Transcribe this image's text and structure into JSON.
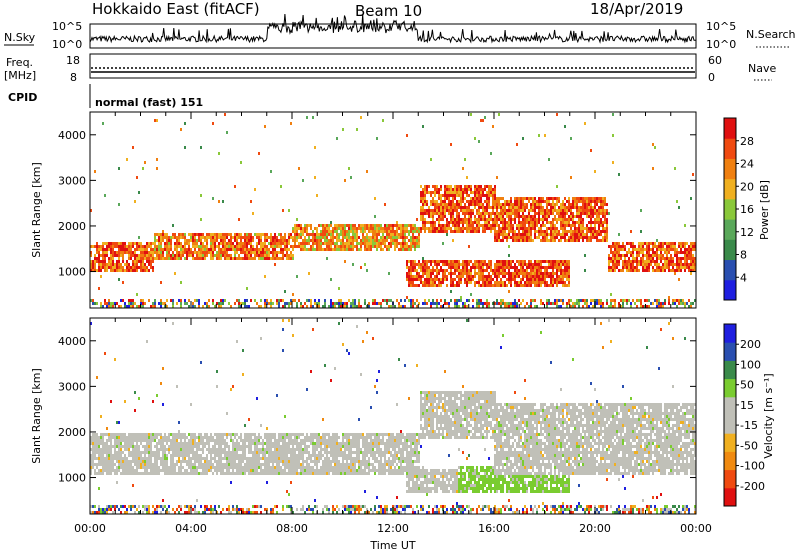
{
  "header": {
    "radar": "Hokkaido East (fitACF)",
    "beam": "Beam 10",
    "date": "18/Apr/2019"
  },
  "panels": {
    "nsky_label": "N.Sky",
    "nsky_tick_top": "10^5",
    "nsky_tick_bottom": "10^0",
    "nsearch_label": "N.Search",
    "freq_label_1": "Freq.",
    "freq_label_2": "[MHz]",
    "freq_tick_top": "18",
    "freq_tick_bottom": "8",
    "nave_label": "Nave",
    "nave_tick_top": "60",
    "nave_tick_bottom": "0",
    "cpid_label": "CPID",
    "cpid_value": "normal (fast) 151"
  },
  "colors": {
    "power": [
      "#1f1fe0",
      "#2a4fb0",
      "#3a8a4a",
      "#5aa85a",
      "#8ac83a",
      "#f0b020",
      "#f08010",
      "#f04a10",
      "#e01010"
    ],
    "velocity": [
      "#e01010",
      "#f04a10",
      "#f08a10",
      "#f0b020",
      "#c0c0b8",
      "#c0c0b8",
      "#7acc30",
      "#3a8a4a",
      "#2a4fb0",
      "#1f1fe0"
    ]
  },
  "chart_data": [
    {
      "type": "heatmap",
      "name": "power",
      "xlabel": "",
      "ylabel": "Slant Range [km]",
      "xlim": [
        "00:00",
        "24:00"
      ],
      "ylim": [
        200,
        4500
      ],
      "yticks": [
        "1000",
        "2000",
        "3000",
        "4000"
      ],
      "colorbar_label": "Power [dB]",
      "colorbar_ticks": [
        "4",
        "8",
        "12",
        "16",
        "20",
        "24",
        "28"
      ],
      "colorbar_range": [
        0,
        32
      ],
      "echo_bands": [
        {
          "from_hours": 0,
          "to_hours": 2.5,
          "range_km": [
            1050,
            1700
          ],
          "level_db": 26
        },
        {
          "from_hours": 2.5,
          "to_hours": 8,
          "range_km": [
            1300,
            1900
          ],
          "level_db": 24
        },
        {
          "from_hours": 8,
          "to_hours": 13,
          "range_km": [
            1500,
            2100
          ],
          "level_db": 22
        },
        {
          "from_hours": 13,
          "to_hours": 16,
          "range_km": [
            1900,
            2900
          ],
          "level_db": 26
        },
        {
          "from_hours": 16,
          "to_hours": 20.5,
          "range_km": [
            1700,
            2700
          ],
          "level_db": 26
        },
        {
          "from_hours": 20.5,
          "to_hours": 24,
          "range_km": [
            1000,
            1700
          ],
          "level_db": 26
        },
        {
          "from_hours": 12.5,
          "to_hours": 19,
          "range_km": [
            700,
            1300
          ],
          "level_db": 27
        }
      ]
    },
    {
      "type": "heatmap",
      "name": "velocity",
      "xlabel": "Time UT",
      "ylabel": "Slant Range [km]",
      "xlim": [
        "00:00",
        "24:00"
      ],
      "xticks": [
        "00:00",
        "04:00",
        "08:00",
        "12:00",
        "16:00",
        "20:00",
        "00:00"
      ],
      "ylim": [
        200,
        4500
      ],
      "yticks": [
        "1000",
        "2000",
        "3000",
        "4000"
      ],
      "colorbar_label": "Velocity [m s⁻¹]",
      "colorbar_ticks": [
        "-200",
        "-100",
        "-50",
        "-15",
        "15",
        "50",
        "100",
        "200"
      ],
      "echo_bands": [
        {
          "from_hours": 0,
          "to_hours": 13,
          "range_km": [
            1100,
            2000
          ],
          "velocity_ms": 0
        },
        {
          "from_hours": 13,
          "to_hours": 16,
          "range_km": [
            1900,
            2900
          ],
          "velocity_ms": 0
        },
        {
          "from_hours": 16,
          "to_hours": 24,
          "range_km": [
            1100,
            2700
          ],
          "velocity_ms": 0
        },
        {
          "from_hours": 12.5,
          "to_hours": 14.5,
          "range_km": [
            700,
            1200
          ],
          "velocity_ms": 0
        },
        {
          "from_hours": 14.5,
          "to_hours": 19,
          "range_km": [
            700,
            1300
          ],
          "velocity_ms": 40
        }
      ]
    }
  ]
}
